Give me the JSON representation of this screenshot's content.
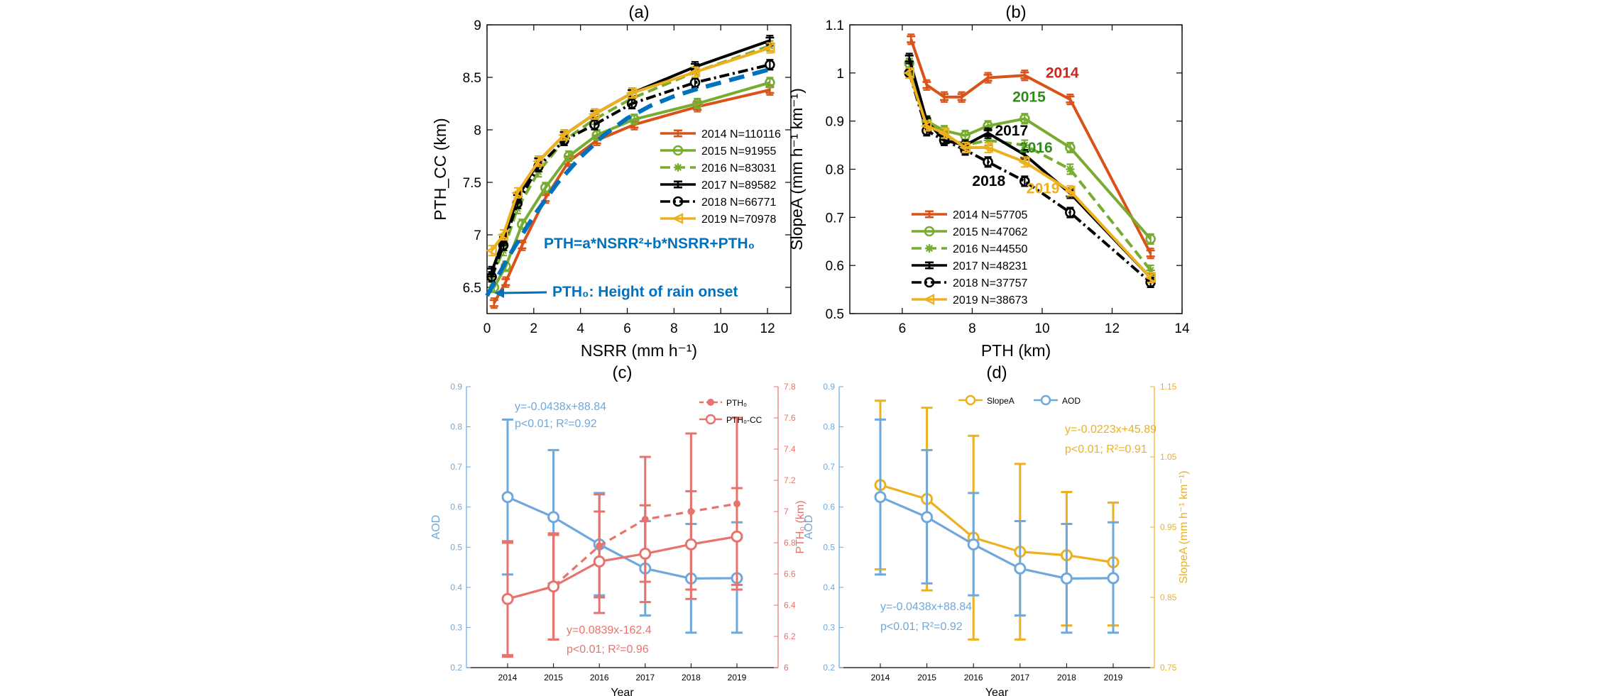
{
  "colors": {
    "2014": "#d95319",
    "2015": "#77ac30",
    "2016": "#77ac30",
    "2017": "#000000",
    "2018": "#000000",
    "2019": "#edb120",
    "fit": "#0072bd",
    "aod": "#6fa8dc",
    "pth": "#e8736c",
    "slope": "#edb120",
    "label2014": "#c9281b",
    "label2015": "#2e8b1c"
  },
  "chart_data": [
    {
      "id": "a",
      "type": "line",
      "title": "(a)",
      "xlabel": "NSRR (mm h⁻¹)",
      "ylabel": "PTH_CC (km)",
      "xlim": [
        0,
        13
      ],
      "ylim": [
        6.25,
        9
      ],
      "xticks": [
        "0",
        "2",
        "4",
        "6",
        "8",
        "10",
        "12"
      ],
      "yticks": [
        "6.5",
        "7",
        "7.5",
        "8",
        "8.5",
        "9"
      ],
      "series": [
        {
          "name": "2014 N=110116",
          "color": "#d95319",
          "dash": "solid",
          "marker": "bar",
          "x": [
            0.3,
            0.8,
            1.5,
            2.5,
            3.5,
            4.7,
            6.3,
            9.0,
            12.1
          ],
          "y": [
            6.35,
            6.55,
            6.9,
            7.35,
            7.7,
            7.9,
            8.05,
            8.22,
            8.38
          ]
        },
        {
          "name": "2015 N=91955",
          "color": "#77ac30",
          "dash": "solid",
          "marker": "circle",
          "x": [
            0.3,
            0.8,
            1.5,
            2.5,
            3.5,
            4.7,
            6.3,
            9.0,
            12.1
          ],
          "y": [
            6.5,
            6.7,
            7.1,
            7.45,
            7.75,
            7.95,
            8.1,
            8.25,
            8.45
          ]
        },
        {
          "name": "2016 N=83031",
          "color": "#77ac30",
          "dash": "dash",
          "marker": "star",
          "x": [
            0.2,
            0.7,
            1.3,
            2.2,
            3.3,
            4.6,
            6.2,
            8.9,
            12.1
          ],
          "y": [
            6.6,
            6.85,
            7.25,
            7.6,
            7.9,
            8.1,
            8.3,
            8.55,
            8.8
          ]
        },
        {
          "name": "2017 N=89582",
          "color": "#000000",
          "dash": "solid",
          "marker": "bar",
          "x": [
            0.2,
            0.7,
            1.3,
            2.2,
            3.3,
            4.6,
            6.2,
            8.9,
            12.1
          ],
          "y": [
            6.65,
            6.95,
            7.35,
            7.7,
            7.95,
            8.15,
            8.35,
            8.6,
            8.85
          ]
        },
        {
          "name": "2018 N=66771",
          "color": "#000000",
          "dash": "dashdot",
          "marker": "circle",
          "x": [
            0.2,
            0.7,
            1.3,
            2.2,
            3.3,
            4.6,
            6.2,
            8.9,
            12.1
          ],
          "y": [
            6.6,
            6.9,
            7.3,
            7.65,
            7.9,
            8.05,
            8.25,
            8.45,
            8.62
          ]
        },
        {
          "name": "2019 N=70978",
          "color": "#edb120",
          "dash": "solid",
          "marker": "triangle",
          "x": [
            0.2,
            0.7,
            1.3,
            2.2,
            3.3,
            4.6,
            6.2,
            8.9,
            12.1
          ],
          "y": [
            6.85,
            7.0,
            7.4,
            7.7,
            7.95,
            8.15,
            8.35,
            8.55,
            8.78
          ]
        }
      ],
      "fit_x": [
        0.0,
        1.0,
        2.0,
        3.0,
        4.0,
        5.0,
        6.0,
        7.0,
        8.0,
        9.0,
        10.0,
        11.0,
        12.0
      ],
      "fit_y": [
        6.42,
        6.82,
        7.18,
        7.49,
        7.74,
        7.95,
        8.11,
        8.23,
        8.32,
        8.39,
        8.45,
        8.51,
        8.57
      ],
      "legend_position": "center-right",
      "annotations": {
        "formula": "PTH=a*NSRR²+b*NSRR+PTH₀",
        "onset": "PTH₀: Height of rain onset"
      }
    },
    {
      "id": "b",
      "type": "line",
      "title": "(b)",
      "xlabel": "PTH (km)",
      "ylabel": "SlopeA (mm h⁻¹ km⁻¹)",
      "xlim": [
        4.5,
        14
      ],
      "ylim": [
        0.5,
        1.1
      ],
      "xticks": [
        "6",
        "8",
        "10",
        "12",
        "14"
      ],
      "yticks": [
        "0.5",
        "0.6",
        "0.7",
        "0.8",
        "0.9",
        "1",
        "1.1"
      ],
      "series": [
        {
          "name": "2014 N=57705",
          "color": "#d95319",
          "dash": "solid",
          "marker": "bar",
          "x": [
            6.25,
            6.7,
            7.2,
            7.7,
            8.45,
            9.5,
            10.8,
            13.1
          ],
          "y": [
            1.07,
            0.975,
            0.95,
            0.95,
            0.99,
            0.995,
            0.945,
            0.625
          ]
        },
        {
          "name": "2015 N=47062",
          "color": "#77ac30",
          "dash": "solid",
          "marker": "circle",
          "x": [
            6.2,
            6.7,
            7.2,
            7.8,
            8.45,
            9.5,
            10.8,
            13.1
          ],
          "y": [
            1.02,
            0.9,
            0.88,
            0.87,
            0.89,
            0.905,
            0.845,
            0.655
          ]
        },
        {
          "name": "2016 N=44550",
          "color": "#77ac30",
          "dash": "dash",
          "marker": "star",
          "x": [
            6.2,
            6.7,
            7.2,
            7.8,
            8.45,
            9.5,
            10.8,
            13.1
          ],
          "y": [
            1.0,
            0.9,
            0.87,
            0.85,
            0.86,
            0.85,
            0.8,
            0.59
          ]
        },
        {
          "name": "2017 N=48231",
          "color": "#000000",
          "dash": "solid",
          "marker": "bar",
          "x": [
            6.2,
            6.7,
            7.2,
            7.8,
            8.45,
            9.5,
            10.8,
            13.1
          ],
          "y": [
            1.03,
            0.9,
            0.86,
            0.85,
            0.875,
            0.83,
            0.75,
            0.575
          ]
        },
        {
          "name": "2018 N=37757",
          "color": "#000000",
          "dash": "dashdot",
          "marker": "circle",
          "x": [
            6.2,
            6.7,
            7.2,
            7.8,
            8.45,
            9.5,
            10.8,
            13.1
          ],
          "y": [
            1.0,
            0.88,
            0.86,
            0.84,
            0.815,
            0.775,
            0.71,
            0.565
          ]
        },
        {
          "name": "2019 N=38673",
          "color": "#edb120",
          "dash": "solid",
          "marker": "triangle",
          "x": [
            6.2,
            6.7,
            7.2,
            7.8,
            8.45,
            9.5,
            10.8,
            13.1
          ],
          "y": [
            1.0,
            0.89,
            0.875,
            0.845,
            0.845,
            0.815,
            0.755,
            0.575
          ]
        }
      ],
      "legend_position": "bottom-left",
      "annotations": [
        {
          "text": "2014",
          "x": 10.1,
          "y": 0.99,
          "color": "#c9281b"
        },
        {
          "text": "2015",
          "x": 9.15,
          "y": 0.94,
          "color": "#2e8b1c"
        },
        {
          "text": "2017",
          "x": 8.65,
          "y": 0.87,
          "color": "#000000"
        },
        {
          "text": "2016",
          "x": 9.35,
          "y": 0.835,
          "color": "#2e8b1c"
        },
        {
          "text": "2018",
          "x": 8.0,
          "y": 0.765,
          "color": "#000000"
        },
        {
          "text": "2019",
          "x": 9.55,
          "y": 0.75,
          "color": "#edb120"
        }
      ]
    },
    {
      "id": "c",
      "type": "line",
      "title": "(c)",
      "xlabel": "Year",
      "ylabel_left": "AOD",
      "ylabel_right": "PTH₀ (km)",
      "categories": [
        "2014",
        "2015",
        "2016",
        "2017",
        "2018",
        "2019"
      ],
      "ylim_left": [
        0.2,
        0.9
      ],
      "ylim_right": [
        6,
        7.8
      ],
      "yticks_left": [
        "0.2",
        "0.3",
        "0.4",
        "0.5",
        "0.6",
        "0.7",
        "0.8",
        "0.9"
      ],
      "yticks_right": [
        "6",
        "6.2",
        "6.4",
        "6.6",
        "6.8",
        "7",
        "7.2",
        "7.4",
        "7.6",
        "7.8"
      ],
      "series": [
        {
          "name": "AOD",
          "axis": "left",
          "color": "#6fa8dc",
          "dash": "solid",
          "marker": "circle",
          "values": [
            0.625,
            0.575,
            0.507,
            0.447,
            0.422,
            0.423
          ],
          "lower": [
            0.432,
            0.41,
            0.38,
            0.33,
            0.287,
            0.287
          ],
          "upper": [
            0.818,
            0.742,
            0.635,
            0.565,
            0.558,
            0.562
          ]
        },
        {
          "name": "PTH₀",
          "axis": "right",
          "color": "#e8736c",
          "dash": "dash",
          "marker": "dot",
          "values": [
            6.44,
            6.52,
            6.78,
            6.95,
            7.0,
            7.05
          ],
          "lower": [
            6.08,
            6.18,
            6.45,
            6.55,
            6.5,
            6.5
          ],
          "upper": [
            6.8,
            6.86,
            7.11,
            7.35,
            7.5,
            7.6
          ]
        },
        {
          "name": "PTH₀-CC",
          "axis": "right",
          "color": "#e8736c",
          "dash": "solid",
          "marker": "circle",
          "values": [
            6.44,
            6.52,
            6.68,
            6.73,
            6.79,
            6.84
          ],
          "lower": [
            6.07,
            6.18,
            6.35,
            6.42,
            6.44,
            6.53
          ],
          "upper": [
            6.81,
            6.85,
            7.0,
            7.04,
            7.13,
            7.15
          ]
        }
      ],
      "legend_position": "top-right",
      "annotations": [
        {
          "line1": "y=-0.0438x+88.84",
          "line2": "p<0.01;  R²=0.92",
          "color": "#6fa8dc"
        },
        {
          "line1": "y=0.0839x-162.4",
          "line2": "p<0.01;  R²=0.96",
          "color": "#e8736c"
        }
      ]
    },
    {
      "id": "d",
      "type": "line",
      "title": "(d)",
      "xlabel": "Year",
      "ylabel_left": "AOD",
      "ylabel_right": "SlopeA (mm h⁻¹ km⁻¹)",
      "categories": [
        "2014",
        "2015",
        "2016",
        "2017",
        "2018",
        "2019"
      ],
      "ylim_left": [
        0.2,
        0.9
      ],
      "ylim_right": [
        0.75,
        1.15
      ],
      "yticks_left": [
        "0.2",
        "0.3",
        "0.4",
        "0.5",
        "0.6",
        "0.7",
        "0.8",
        "0.9"
      ],
      "yticks_right": [
        "0.75",
        "0.85",
        "0.95",
        "1.05",
        "1.15"
      ],
      "series": [
        {
          "name": "SlopeA",
          "axis": "right",
          "color": "#edb120",
          "dash": "solid",
          "marker": "circle",
          "values": [
            1.01,
            0.99,
            0.935,
            0.915,
            0.91,
            0.9
          ],
          "lower": [
            0.89,
            0.86,
            0.79,
            0.79,
            0.81,
            0.81
          ],
          "upper": [
            1.13,
            1.12,
            1.08,
            1.04,
            1.0,
            0.985
          ]
        },
        {
          "name": "AOD",
          "axis": "left",
          "color": "#6fa8dc",
          "dash": "solid",
          "marker": "circle",
          "values": [
            0.625,
            0.575,
            0.507,
            0.447,
            0.422,
            0.423
          ],
          "lower": [
            0.432,
            0.41,
            0.38,
            0.33,
            0.287,
            0.287
          ],
          "upper": [
            0.818,
            0.742,
            0.635,
            0.565,
            0.558,
            0.562
          ]
        }
      ],
      "legend_position": "top-center",
      "annotations": [
        {
          "line1": "y=-0.0223x+45.89",
          "line2": "p<0.01;  R²=0.91",
          "color": "#edb120"
        },
        {
          "line1": "y=-0.0438x+88.84",
          "line2": "p<0.01;  R²=0.92",
          "color": "#6fa8dc"
        }
      ]
    }
  ]
}
